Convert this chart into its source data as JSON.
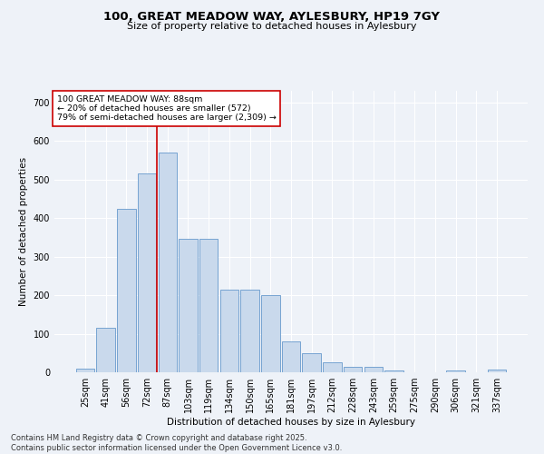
{
  "title_line1": "100, GREAT MEADOW WAY, AYLESBURY, HP19 7GY",
  "title_line2": "Size of property relative to detached houses in Aylesbury",
  "xlabel": "Distribution of detached houses by size in Aylesbury",
  "ylabel": "Number of detached properties",
  "categories": [
    "25sqm",
    "41sqm",
    "56sqm",
    "72sqm",
    "87sqm",
    "103sqm",
    "119sqm",
    "134sqm",
    "150sqm",
    "165sqm",
    "181sqm",
    "197sqm",
    "212sqm",
    "228sqm",
    "243sqm",
    "259sqm",
    "275sqm",
    "290sqm",
    "306sqm",
    "321sqm",
    "337sqm"
  ],
  "values": [
    10,
    115,
    425,
    515,
    570,
    345,
    345,
    215,
    215,
    200,
    80,
    50,
    25,
    15,
    15,
    5,
    0,
    0,
    5,
    0,
    8
  ],
  "bar_color": "#c9d9ec",
  "bar_edge_color": "#6699cc",
  "vline_color": "#cc0000",
  "vline_x_index": 4,
  "annotation_title": "100 GREAT MEADOW WAY: 88sqm",
  "annotation_line1": "← 20% of detached houses are smaller (572)",
  "annotation_line2": "79% of semi-detached houses are larger (2,309) →",
  "annotation_box_color": "#ffffff",
  "annotation_box_edge_color": "#cc0000",
  "ylim": [
    0,
    730
  ],
  "yticks": [
    0,
    100,
    200,
    300,
    400,
    500,
    600,
    700
  ],
  "footer_line1": "Contains HM Land Registry data © Crown copyright and database right 2025.",
  "footer_line2": "Contains public sector information licensed under the Open Government Licence v3.0.",
  "background_color": "#eef2f8",
  "plot_bg_color": "#eef2f8",
  "title1_fontsize": 9.5,
  "title2_fontsize": 8,
  "axis_fontsize": 7.5,
  "tick_fontsize": 7,
  "annotation_fontsize": 6.8,
  "footer_fontsize": 6
}
